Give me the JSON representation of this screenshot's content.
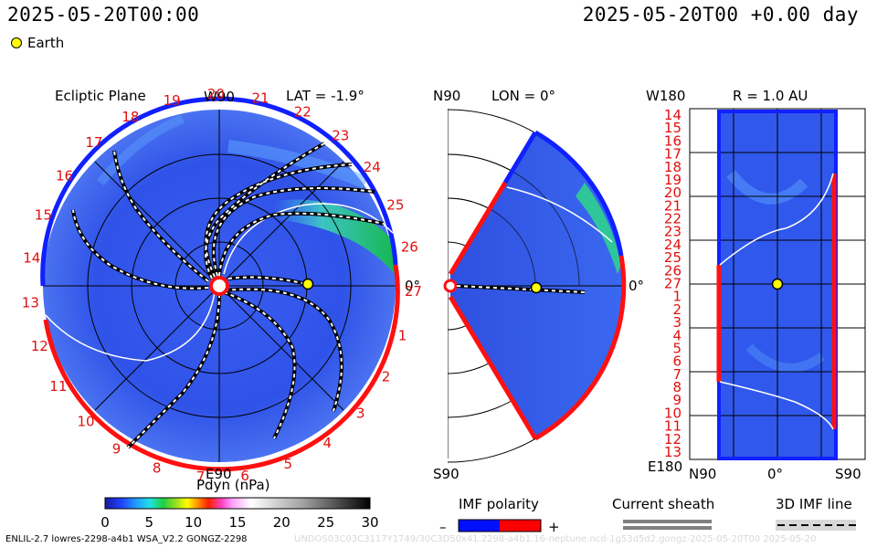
{
  "header": {
    "left_time": "2025-05-20T00:00",
    "right_time": "2025-05-20T00 +0.00 day"
  },
  "legend": {
    "earth_label": "Earth"
  },
  "ecliptic_panel": {
    "title": "Ecliptic Plane",
    "lat_label": "LAT = -1.9°",
    "top_label": "W90",
    "bottom_label": "E90",
    "right_label": "0°",
    "sector_numbers": [
      "19",
      "20",
      "21",
      "22",
      "23",
      "24",
      "25",
      "26",
      "27",
      "1",
      "2",
      "3",
      "4",
      "5",
      "6",
      "7",
      "8",
      "9",
      "10",
      "11",
      "12",
      "13",
      "14",
      "15",
      "16",
      "17",
      "18"
    ]
  },
  "meridional_panel": {
    "lon_label": "LON = 0°",
    "top_label": "N90",
    "bottom_label": "S90",
    "right_label": "0°"
  },
  "radial_panel": {
    "r_label": "R = 1.0 AU",
    "top_left_label": "W180",
    "bottom_left_label": "E180",
    "bottom_axis_labels": [
      "N90",
      "0°",
      "S90"
    ],
    "row_numbers": [
      "14",
      "15",
      "16",
      "17",
      "18",
      "19",
      "20",
      "21",
      "22",
      "23",
      "24",
      "25",
      "26",
      "27",
      "1",
      "2",
      "3",
      "4",
      "5",
      "6",
      "7",
      "8",
      "9",
      "10",
      "11",
      "12",
      "13"
    ]
  },
  "colorbar": {
    "title": "Pdyn (nPa)",
    "ticks": [
      "0",
      "5",
      "10",
      "15",
      "20",
      "25",
      "30"
    ]
  },
  "imf_polarity": {
    "title": "IMF polarity",
    "minus": "–",
    "plus": "+",
    "colors": {
      "negative": "#0010ff",
      "positive": "#ff0000"
    }
  },
  "current_sheath": {
    "title": "Current sheath"
  },
  "imf_line": {
    "title": "3D IMF line"
  },
  "footer": {
    "left": "ENLIL-2.7 lowres-2298-a4b1 WSA_V2.2 GONGZ-2298",
    "right": "UNDOS03C03C3117Y1749/30C3D50x41.2298-a4b1.16-neptune.ncd-1g53d5d2.gongz-2025-05-20T00 2025-05-20"
  }
}
